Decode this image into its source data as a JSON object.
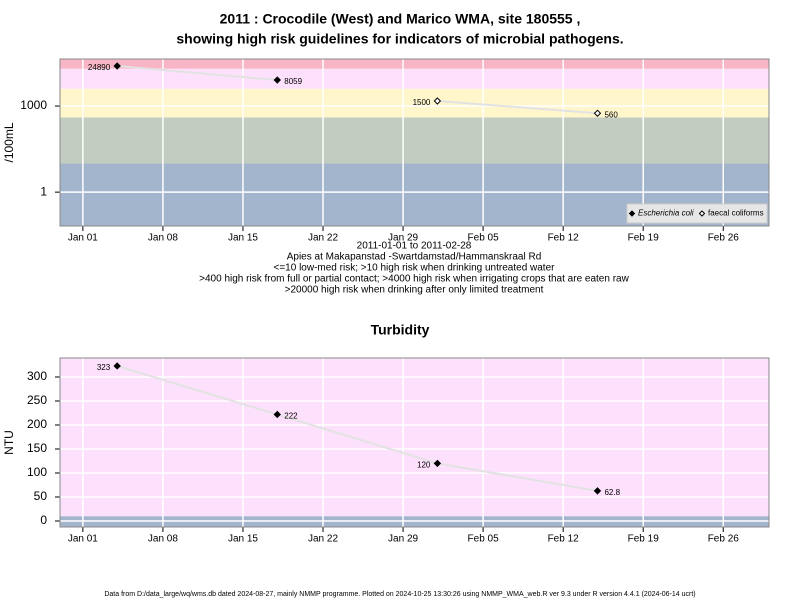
{
  "chart_data": [
    {
      "type": "line",
      "title": [
        "2011 : Crocodile (West) and Marico WMA, site 180555 ,",
        "showing high risk guidelines for indicators of microbial pathogens."
      ],
      "ylabel": "/100mL",
      "notes": [
        "2011-01-01 to 2011-02-28",
        "Apies at Makapanstad -Swartdamstad/Hammanskraal Rd",
        "<=10 low-med risk; >10 high risk when drinking untreated water",
        ">400 high risk from full or partial contact; >4000 high risk when irrigating crops that are eaten raw",
        ">20000 high risk when drinking after only limited treatment"
      ],
      "x": [
        "2011-01-04",
        "2011-01-18",
        "2011-02-01",
        "2011-02-15"
      ],
      "series": [
        {
          "name": "Escherichia coli",
          "color": "#000000",
          "marker": "filled-diamond",
          "values": [
            24890,
            8059,
            null,
            null
          ]
        },
        {
          "name": "faecal coliforms",
          "color": "#000000",
          "marker": "open-diamond",
          "values": [
            null,
            null,
            1500,
            560
          ]
        }
      ],
      "log_y": true,
      "ylim": [
        0.066,
        43600
      ],
      "yticks": [
        1,
        1000
      ],
      "xlim": [
        "2010-12-30",
        "2011-03-02"
      ],
      "xticks": [
        {
          "value": "2011-01-01",
          "label": "Jan 01"
        },
        {
          "value": "2011-01-08",
          "label": "Jan 08"
        },
        {
          "value": "2011-01-15",
          "label": "Jan 15"
        },
        {
          "value": "2011-01-22",
          "label": "Jan 22"
        },
        {
          "value": "2011-01-29",
          "label": "Jan 29"
        },
        {
          "value": "2011-02-05",
          "label": "Feb 05"
        },
        {
          "value": "2011-02-12",
          "label": "Feb 12"
        },
        {
          "value": "2011-02-19",
          "label": "Feb 19"
        },
        {
          "value": "2011-02-26",
          "label": "Feb 26"
        }
      ],
      "thresholds": [
        10,
        400,
        4000,
        20000
      ],
      "band_colors": [
        "#a3b4cd",
        "#c3ccc0",
        "#fff6cc",
        "#fde0fb",
        "#f8b5c5"
      ],
      "line_color": "#e2e2e2",
      "grid": true,
      "legend": "bottom-right"
    },
    {
      "type": "line",
      "title": "Turbidity",
      "ylabel": "NTU",
      "x": [
        "2011-01-04",
        "2011-01-18",
        "2011-02-01",
        "2011-02-15"
      ],
      "series": [
        {
          "name": "Turbidity",
          "color": "#000000",
          "marker": "filled-diamond",
          "values": [
            323,
            222,
            120,
            62.8
          ]
        }
      ],
      "log_y": false,
      "ylim": [
        -12.5,
        339.6
      ],
      "yticks": [
        0,
        50,
        100,
        150,
        200,
        250,
        300
      ],
      "xlim": [
        "2010-12-30",
        "2011-03-02"
      ],
      "xticks": [
        {
          "value": "2011-01-01",
          "label": "Jan 01"
        },
        {
          "value": "2011-01-08",
          "label": "Jan 08"
        },
        {
          "value": "2011-01-15",
          "label": "Jan 15"
        },
        {
          "value": "2011-01-22",
          "label": "Jan 22"
        },
        {
          "value": "2011-01-29",
          "label": "Jan 29"
        },
        {
          "value": "2011-02-05",
          "label": "Feb 05"
        },
        {
          "value": "2011-02-12",
          "label": "Feb 12"
        },
        {
          "value": "2011-02-19",
          "label": "Feb 19"
        },
        {
          "value": "2011-02-26",
          "label": "Feb 26"
        }
      ],
      "thresholds": [
        10
      ],
      "band_colors": [
        "#a3b4cd",
        "#fde0fb"
      ],
      "line_color": "#e2e2e2",
      "grid": true
    }
  ],
  "footer": "Data from D:/data_large/wq/wms.db dated 2024-08-27, mainly NMMP programme. Plotted on 2024-10-25 13:30:26 using NMMP_WMA_web.R ver 9.3 under R version 4.4.1 (2024-06-14 ucrt)"
}
